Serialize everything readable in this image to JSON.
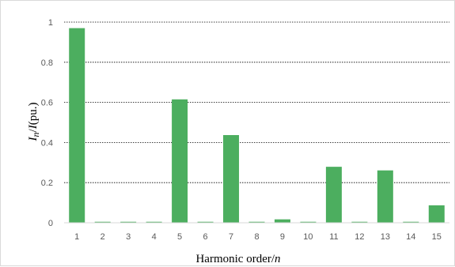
{
  "chart_data": {
    "type": "bar",
    "categories": [
      "1",
      "2",
      "3",
      "4",
      "5",
      "6",
      "7",
      "8",
      "9",
      "10",
      "11",
      "12",
      "13",
      "14",
      "15"
    ],
    "values": [
      0.97,
      0.005,
      0.005,
      0.005,
      0.615,
      0.005,
      0.437,
      0.005,
      0.017,
      0.005,
      0.279,
      0.005,
      0.261,
      0.005,
      0.087
    ],
    "ylim": [
      0,
      1
    ],
    "yticks": [
      "0",
      "0.2",
      "0.4",
      "0.6",
      "0.8",
      "1"
    ],
    "ytick_values": [
      0,
      0.2,
      0.4,
      0.6,
      0.8,
      1
    ],
    "xlabel_prefix": "Harmonic order/",
    "xlabel_var": "n",
    "ylabel_var1": "I",
    "ylabel_sub": "n",
    "ylabel_slash": "/",
    "ylabel_var2": "I",
    "ylabel_suffix": "(pu.)",
    "grid": true,
    "legend": "none",
    "bar_color": "#4cae5f"
  }
}
